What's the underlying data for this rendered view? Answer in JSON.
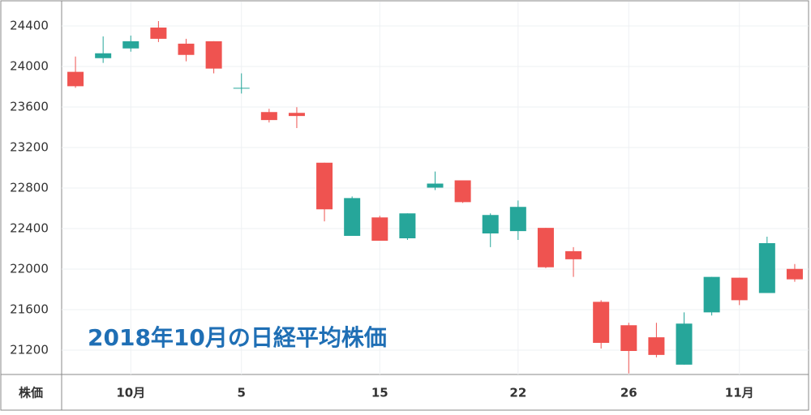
{
  "chart_data": {
    "type": "candlestick",
    "annotation": "2018年10月の日経平均株価",
    "y_axis_label": "株価",
    "categories": [
      null,
      null,
      "10月",
      null,
      null,
      null,
      "5",
      null,
      null,
      null,
      null,
      "15",
      null,
      null,
      null,
      null,
      "22",
      null,
      null,
      null,
      "26",
      null,
      null,
      null,
      "11月",
      null,
      null
    ],
    "open": [
      23947,
      24082,
      24178,
      24384,
      24225,
      24249,
      23783,
      23550,
      23542,
      23050,
      22328,
      22510,
      22304,
      22804,
      22876,
      22352,
      22375,
      22407,
      22177,
      21677,
      21446,
      21327,
      21057,
      21573,
      21915,
      21764,
      22002
    ],
    "high": [
      24098,
      24297,
      24305,
      24448,
      24273,
      24249,
      23932,
      23582,
      23598,
      23050,
      22717,
      22526,
      22550,
      22963,
      22876,
      22550,
      22677,
      22407,
      22217,
      21693,
      21470,
      21470,
      21573,
      21923,
      21915,
      22320,
      22050
    ],
    "low": [
      23789,
      24035,
      24146,
      24241,
      24051,
      23932,
      23733,
      23447,
      23392,
      22471,
      22328,
      22280,
      22288,
      22780,
      22653,
      22217,
      22288,
      22010,
      21923,
      21216,
      20970,
      21129,
      21057,
      21542,
      21645,
      21764,
      21875
    ],
    "close": [
      23805,
      24130,
      24249,
      24273,
      24114,
      23979,
      23789,
      23471,
      23511,
      22590,
      22701,
      22280,
      22550,
      22844,
      22661,
      22534,
      22614,
      22018,
      22097,
      21272,
      21192,
      21153,
      21462,
      21923,
      21693,
      22256,
      21899
    ],
    "up_color": "#26a69a",
    "down_color": "#ef5350",
    "ylim": [
      20960,
      24640
    ],
    "yticks": [
      21200,
      21600,
      22000,
      22400,
      22800,
      23200,
      23600,
      24000,
      24400
    ],
    "grid": true
  }
}
